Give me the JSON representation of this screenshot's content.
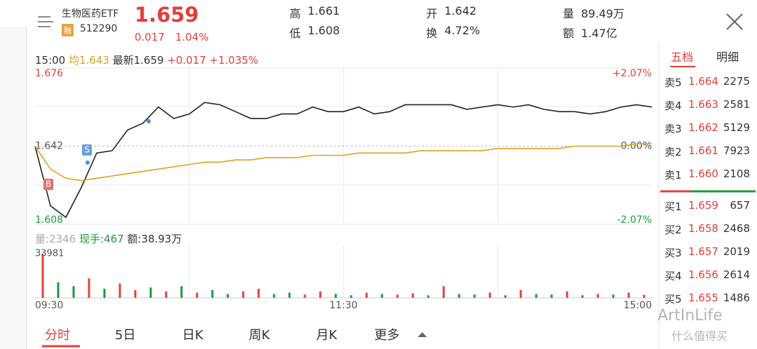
{
  "header": {
    "name": "生物医药ETF",
    "badge": "融",
    "code": "512290",
    "price": "1.659",
    "change": "0.017",
    "change_pct": "1.04%",
    "stats": [
      {
        "label": "高",
        "value": "1.661"
      },
      {
        "label": "低",
        "value": "1.608"
      },
      {
        "label": "开",
        "value": "1.642"
      },
      {
        "label": "换",
        "value": "4.72%"
      },
      {
        "label": "量",
        "value": "89.49万"
      },
      {
        "label": "额",
        "value": "1.47亿"
      }
    ]
  },
  "info_bar": {
    "time": "15:00",
    "avg": "均1.643",
    "latest": "最新1.659",
    "change": "+0.017",
    "change_pct": "+1.035%"
  },
  "intraday": {
    "type": "line",
    "ylim": [
      1.608,
      1.676
    ],
    "yticks": [
      {
        "value": 1.676,
        "label": "1.676"
      },
      {
        "value": 1.642,
        "label": "1.642"
      },
      {
        "value": 1.608,
        "label": "1.608"
      }
    ],
    "pct_ticks": [
      "+2.07%",
      "0.00%",
      "-2.07%"
    ],
    "xticks": [
      "09:30",
      "11:30",
      "15:00"
    ],
    "markers": [
      "S",
      "B"
    ],
    "series": [
      {
        "name": "price",
        "color": "#222222",
        "values": [
          1.642,
          1.616,
          1.611,
          1.624,
          1.639,
          1.64,
          1.649,
          1.652,
          1.659,
          1.654,
          1.656,
          1.661,
          1.66,
          1.657,
          1.654,
          1.654,
          1.656,
          1.656,
          1.659,
          1.657,
          1.657,
          1.659,
          1.656,
          1.657,
          1.66,
          1.66,
          1.66,
          1.66,
          1.658,
          1.659,
          1.66,
          1.659,
          1.66,
          1.658,
          1.657,
          1.657,
          1.656,
          1.657,
          1.659,
          1.66,
          1.659
        ]
      },
      {
        "name": "avg",
        "color": "#e0a020",
        "values": [
          1.642,
          1.632,
          1.628,
          1.627,
          1.628,
          1.629,
          1.63,
          1.631,
          1.632,
          1.633,
          1.634,
          1.635,
          1.635,
          1.636,
          1.636,
          1.637,
          1.637,
          1.637,
          1.638,
          1.638,
          1.638,
          1.639,
          1.639,
          1.639,
          1.639,
          1.64,
          1.64,
          1.64,
          1.64,
          1.64,
          1.641,
          1.641,
          1.641,
          1.641,
          1.641,
          1.642,
          1.642,
          1.642,
          1.642,
          1.643,
          1.643
        ]
      }
    ]
  },
  "volume": {
    "type": "bar",
    "volume_label": "量:2346",
    "hand": "现手:467",
    "amount": "额:38.93万",
    "ylim": [
      0,
      33981
    ],
    "yticks": [
      33981
    ],
    "values": [
      33981,
      12000,
      9000,
      15000,
      7000,
      11000,
      6000,
      8000,
      5000,
      9000,
      4000,
      6000,
      3000,
      5000,
      7000,
      3000,
      4000,
      2500,
      5000,
      3000,
      2000,
      4000,
      3000,
      2500,
      3500,
      2000,
      9000,
      3000,
      2500,
      4000,
      2000,
      6000,
      3000,
      2500,
      5000,
      2000,
      3000,
      2500,
      4000,
      2346
    ],
    "colors": [
      "#e0403a",
      "#1a9a3a",
      "#1a9a3a",
      "#e0403a",
      "#1a9a3a",
      "#e0403a",
      "#e0403a",
      "#1a9a3a",
      "#e0403a",
      "#1a9a3a",
      "#e0403a",
      "#1a9a3a",
      "#1a9a3a",
      "#e0403a",
      "#e0403a",
      "#1a9a3a",
      "#1a9a3a",
      "#e0403a",
      "#e0403a",
      "#1a9a3a",
      "#1a9a3a",
      "#e0403a",
      "#1a9a3a",
      "#e0403a",
      "#e0403a",
      "#1a9a3a",
      "#e0403a",
      "#1a9a3a",
      "#1a9a3a",
      "#e0403a",
      "#1a9a3a",
      "#e0403a",
      "#1a9a3a",
      "#1a9a3a",
      "#e0403a",
      "#1a9a3a",
      "#e0403a",
      "#1a9a3a",
      "#e0403a",
      "#e0403a"
    ]
  },
  "order_book": {
    "tabs": [
      "五档",
      "明细"
    ],
    "sell": [
      {
        "label": "卖5",
        "price": "1.664",
        "vol": "2275"
      },
      {
        "label": "卖4",
        "price": "1.663",
        "vol": "2581"
      },
      {
        "label": "卖3",
        "price": "1.662",
        "vol": "5129"
      },
      {
        "label": "卖2",
        "price": "1.661",
        "vol": "7923"
      },
      {
        "label": "卖1",
        "price": "1.660",
        "vol": "2108"
      }
    ],
    "buy": [
      {
        "label": "买1",
        "price": "1.659",
        "vol": "657"
      },
      {
        "label": "买2",
        "price": "1.658",
        "vol": "2468"
      },
      {
        "label": "买3",
        "price": "1.657",
        "vol": "2019"
      },
      {
        "label": "买4",
        "price": "1.656",
        "vol": "2614"
      },
      {
        "label": "买5",
        "price": "1.655",
        "vol": "1486"
      }
    ]
  },
  "tabs": [
    "分时",
    "5日",
    "日K",
    "周K",
    "月K",
    "更多"
  ],
  "watermark": {
    "brand": "ArtInLife",
    "site": "什么值得买"
  }
}
